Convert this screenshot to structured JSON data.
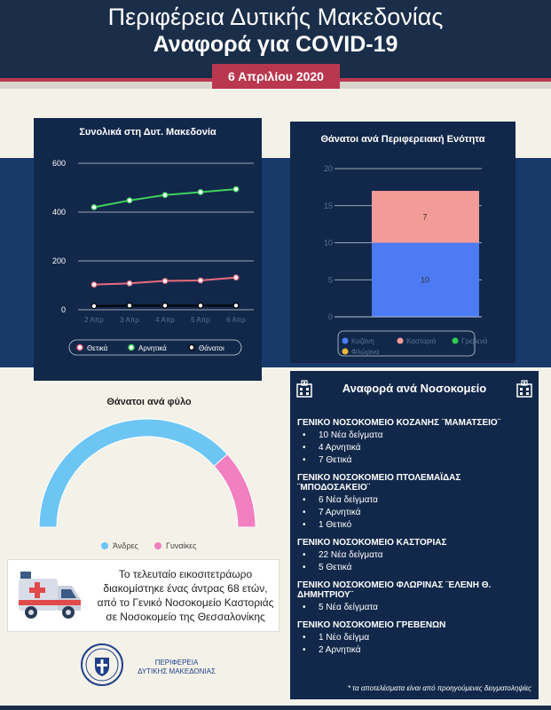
{
  "header": {
    "title": "Περιφέρεια Δυτικής Μακεδονίας",
    "subtitle": "Αναφορά για COVID-19",
    "date": "6 Απριλίου 2020"
  },
  "colors": {
    "navy": "#1a2e4a",
    "panel": "#12284a",
    "accent": "#b9384f",
    "positive": "#e86a7d",
    "negative": "#3fd15e",
    "deaths": "#000000",
    "kozani": "#4c7bf5",
    "kastoria": "#f39b96",
    "grevena": "#2dcf4e",
    "florina": "#e8b737",
    "men": "#6cc5f3",
    "women": "#f27fbf"
  },
  "chart_data": [
    {
      "type": "line",
      "title": "Συνολικά στη Δυτ. Μακεδονία",
      "categories": [
        "2 Απρ",
        "3 Απρ",
        "4 Απρ",
        "5 Απρ",
        "6 Απρ"
      ],
      "yticks": [
        "600",
        "400",
        "200",
        "0"
      ],
      "ylim": [
        0,
        600
      ],
      "series": [
        {
          "name": "Θετικά",
          "values": [
            103,
            108,
            118,
            120,
            132
          ]
        },
        {
          "name": "Αρνητικά",
          "values": [
            420,
            448,
            470,
            482,
            494
          ]
        },
        {
          "name": "Θάνατοι",
          "values": [
            15,
            17,
            17,
            17,
            17
          ]
        }
      ],
      "legend": "bottom"
    },
    {
      "type": "bar",
      "stacked": true,
      "title": "Θάνατοι ανά Περιφερειακή Ενότητα",
      "yticks": [
        "20",
        "15",
        "10",
        "5",
        "0"
      ],
      "ylim": [
        0,
        20
      ],
      "series": [
        {
          "name": "Κοζάνη",
          "values": [
            10
          ]
        },
        {
          "name": "Καστοριά",
          "values": [
            7
          ]
        },
        {
          "name": "Γρεβενά",
          "values": [
            0
          ]
        },
        {
          "name": "Φλώρινα",
          "values": [
            0
          ]
        }
      ],
      "legend": "bottom"
    },
    {
      "type": "pie",
      "variant": "half-donut",
      "title": "Θάνατοι ανά φύλο",
      "slices": [
        {
          "name": "Άνδρες",
          "value": 13
        },
        {
          "name": "Γυναίκες",
          "value": 4
        }
      ],
      "legend": "bottom"
    }
  ],
  "death_note": "Το τελευταίο εικοσιτετράωρο διακομίστηκε ένας άντρας 68 ετών, από το Γενικό Νοσοκομείο Καστοριάς σε Νοσοκομείο της Θεσσαλονίκης",
  "logo": {
    "line1": "ΠΕΡΙΦΕΡΕΙΑ",
    "line2": "ΔΥΤΙΚΗΣ ΜΑΚΕΔΟΝΙΑΣ"
  },
  "hospitals": {
    "title": "Αναφορά ανά Νοσοκομείο",
    "list": [
      {
        "name": "ΓΕΝΙΚΟ ΝΟΣΟΚΟΜΕΙΟ ΚΟΖΑΝΗΣ ¨ΜΑΜΑΤΣΕΙΟ¨",
        "items": [
          "10 Νέα δείγματα",
          "4 Αρνητικά",
          "7 Θετικά"
        ]
      },
      {
        "name": "ΓΕΝΙΚΟ ΝΟΣΟΚΟΜΕΙΟ ΠΤΟΛΕΜΑΪΔΑΣ ¨ΜΠΟΔΟΣΑΚΕΙΟ¨",
        "items": [
          "6 Νέα δείγματα",
          "7 Αρνητικά",
          "1 Θετικό"
        ]
      },
      {
        "name": "ΓΕΝΙΚΟ ΝΟΣΟΚΟΜΕΙΟ ΚΑΣΤΟΡΙΑΣ",
        "items": [
          "22 Νέα δείγματα",
          "5 Θετικά"
        ]
      },
      {
        "name": "ΓΕΝΙΚΟ ΝΟΣΟΚΟΜΕΙΟ ΦΛΩΡΙΝΑΣ ¨ΕΛΕΝΗ Θ. ΔΗΜΗΤΡΙΟΥ¨",
        "items": [
          "5 Νέα δείγματα"
        ]
      },
      {
        "name": "ΓΕΝΙΚΟ ΝΟΣΟΚΟΜΕΙΟ ΓΡΕΒΕΝΩΝ",
        "items": [
          "1 Νέο δείγμα",
          "2 Αρνητικά"
        ]
      }
    ],
    "footnote": "* τα αποτελέσματα είναι από προηγούμενες δειγματοληψίες"
  }
}
